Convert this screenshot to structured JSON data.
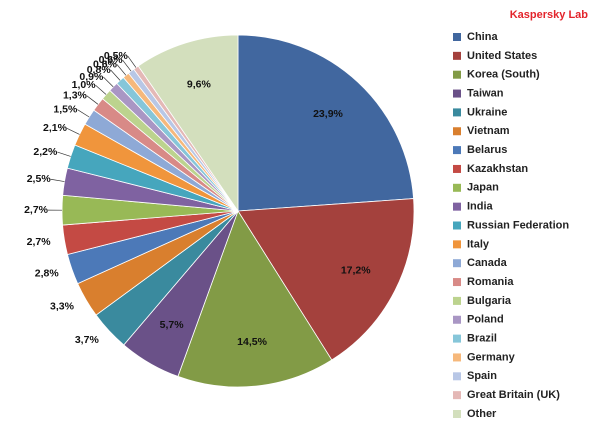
{
  "brand": "Kaspersky Lab",
  "chart_data": {
    "type": "pie",
    "title": "",
    "slices": [
      {
        "name": "China",
        "value": 23.9,
        "label": "23,9%",
        "color": "#41679f"
      },
      {
        "name": "United States",
        "value": 17.2,
        "label": "17,2%",
        "color": "#a4413d"
      },
      {
        "name": "Korea (South)",
        "value": 14.5,
        "label": "14,5%",
        "color": "#829b46"
      },
      {
        "name": "Taiwan",
        "value": 5.7,
        "label": "5,7%",
        "color": "#6a5188"
      },
      {
        "name": "Ukraine",
        "value": 3.7,
        "label": "3,7%",
        "color": "#3a8a9e"
      },
      {
        "name": "Vietnam",
        "value": 3.3,
        "label": "3,3%",
        "color": "#d97f2e"
      },
      {
        "name": "Belarus",
        "value": 2.8,
        "label": "2,8%",
        "color": "#4c79b8"
      },
      {
        "name": "Kazakhstan",
        "value": 2.7,
        "label": "2,7%",
        "color": "#c44a44"
      },
      {
        "name": "Japan",
        "value": 2.7,
        "label": "2,7%",
        "color": "#98b956"
      },
      {
        "name": "India",
        "value": 2.5,
        "label": "2,5%",
        "color": "#7f62a1"
      },
      {
        "name": "Russian Federation",
        "value": 2.2,
        "label": "2,2%",
        "color": "#46a6bd"
      },
      {
        "name": "Italy",
        "value": 2.1,
        "label": "2,1%",
        "color": "#f0953c"
      },
      {
        "name": "Canada",
        "value": 1.5,
        "label": "1,5%",
        "color": "#8ea9d6"
      },
      {
        "name": "Romania",
        "value": 1.3,
        "label": "1,3%",
        "color": "#d88a87"
      },
      {
        "name": "Bulgaria",
        "value": 1.0,
        "label": "1,0%",
        "color": "#bcd38e"
      },
      {
        "name": "Poland",
        "value": 0.9,
        "label": "0,9%",
        "color": "#a996c4"
      },
      {
        "name": "Brazil",
        "value": 0.8,
        "label": "0,8%",
        "color": "#86c6d9"
      },
      {
        "name": "Germany",
        "value": 0.6,
        "label": "0,6%",
        "color": "#f6b87b"
      },
      {
        "name": "Spain",
        "value": 0.6,
        "label": "0,6%",
        "color": "#b8c7e6"
      },
      {
        "name": "Great Britain (UK)",
        "value": 0.5,
        "label": "0,5%",
        "color": "#e4b8b6"
      },
      {
        "name": "Other",
        "value": 9.6,
        "label": "9,6%",
        "color": "#d3dfbd"
      }
    ],
    "start_angle_deg": 0,
    "direction": "clockwise",
    "legend_position": "right"
  }
}
